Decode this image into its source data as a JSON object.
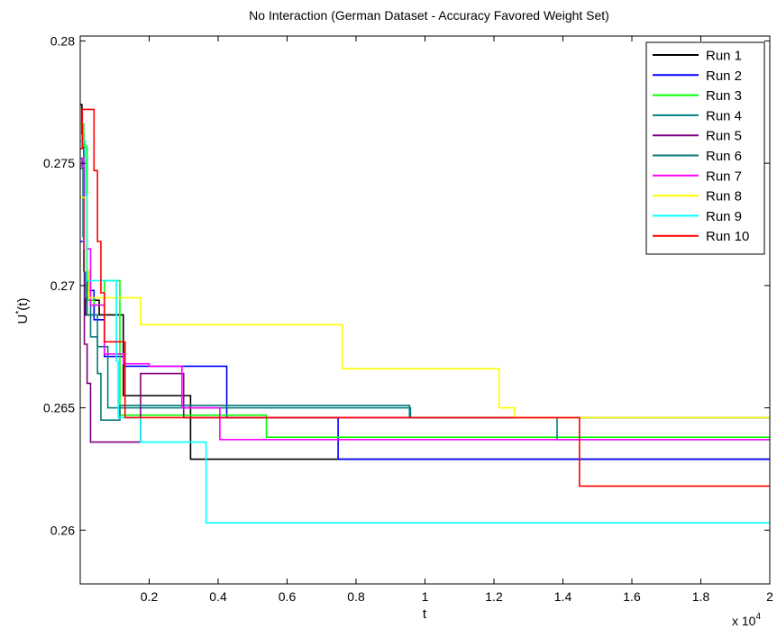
{
  "chart_data": {
    "type": "line",
    "title": "No Interaction (German Dataset - Accuracy Favored Weight Set)",
    "xlabel": "t",
    "ylabel": "U",
    "ylabel_superscript": "*",
    "ylabel_suffix": "(t)",
    "x_exponent_label": "x 10",
    "x_exponent_power": "4",
    "xlim": [
      0,
      20000
    ],
    "ylim": [
      0.2578,
      0.2802
    ],
    "x_tick_values": [
      2000,
      4000,
      6000,
      8000,
      10000,
      12000,
      14000,
      16000,
      18000,
      20000
    ],
    "x_tick_labels": [
      "0.2",
      "0.4",
      "0.6",
      "0.8",
      "1",
      "1.2",
      "1.4",
      "1.6",
      "1.8",
      "2"
    ],
    "y_tick_values": [
      0.26,
      0.265,
      0.27,
      0.275,
      0.28
    ],
    "y_tick_labels": [
      "0.26",
      "0.265",
      "0.27",
      "0.275",
      "0.28"
    ],
    "grid": false,
    "legend_position": "top-right",
    "step": true,
    "series": [
      {
        "name": "Run 1",
        "color": "#000000",
        "points": [
          [
            0,
            0.2774
          ],
          [
            50,
            0.2762
          ],
          [
            100,
            0.2712
          ],
          [
            150,
            0.2688
          ],
          [
            300,
            0.2688
          ],
          [
            400,
            0.2694
          ],
          [
            550,
            0.2688
          ],
          [
            1150,
            0.2688
          ],
          [
            1250,
            0.2655
          ],
          [
            3100,
            0.2655
          ],
          [
            3200,
            0.2629
          ],
          [
            20000,
            0.2629
          ]
        ]
      },
      {
        "name": "Run 2",
        "color": "#0000ff",
        "points": [
          [
            0,
            0.2718
          ],
          [
            100,
            0.2706
          ],
          [
            250,
            0.2698
          ],
          [
            400,
            0.2686
          ],
          [
            700,
            0.2671
          ],
          [
            1300,
            0.2667
          ],
          [
            4200,
            0.2667
          ],
          [
            4250,
            0.2646
          ],
          [
            7450,
            0.2646
          ],
          [
            7480,
            0.2629
          ],
          [
            20000,
            0.2629
          ]
        ]
      },
      {
        "name": "Run 3",
        "color": "#00ff00",
        "points": [
          [
            0,
            0.2766
          ],
          [
            100,
            0.2757
          ],
          [
            200,
            0.2694
          ],
          [
            400,
            0.2692
          ],
          [
            700,
            0.2702
          ],
          [
            1050,
            0.2702
          ],
          [
            1150,
            0.2647
          ],
          [
            5350,
            0.2647
          ],
          [
            5400,
            0.2638
          ],
          [
            20000,
            0.2638
          ]
        ]
      },
      {
        "name": "Run 4",
        "color": "#008080",
        "points": [
          [
            0,
            0.2756
          ],
          [
            100,
            0.2706
          ],
          [
            200,
            0.2688
          ],
          [
            500,
            0.2675
          ],
          [
            800,
            0.265
          ],
          [
            9550,
            0.265
          ],
          [
            9580,
            0.2646
          ],
          [
            13800,
            0.2646
          ],
          [
            13830,
            0.2637
          ],
          [
            20000,
            0.2637
          ]
        ]
      },
      {
        "name": "Run 5",
        "color": "#800080",
        "points": [
          [
            0,
            0.2748
          ],
          [
            120,
            0.2676
          ],
          [
            200,
            0.266
          ],
          [
            300,
            0.2636
          ],
          [
            1700,
            0.2636
          ],
          [
            1750,
            0.2664
          ],
          [
            2950,
            0.2664
          ],
          [
            3000,
            0.2646
          ],
          [
            20000,
            0.2646
          ]
        ]
      },
      {
        "name": "Run 6",
        "color": "#0b7a7a",
        "points": [
          [
            0,
            0.2752
          ],
          [
            80,
            0.272
          ],
          [
            150,
            0.2695
          ],
          [
            300,
            0.2679
          ],
          [
            500,
            0.2664
          ],
          [
            600,
            0.2645
          ],
          [
            1100,
            0.2645
          ],
          [
            1150,
            0.2651
          ],
          [
            9500,
            0.2651
          ],
          [
            9550,
            0.2646
          ],
          [
            20000,
            0.2646
          ]
        ]
      },
      {
        "name": "Run 7",
        "color": "#ff00ff",
        "points": [
          [
            0,
            0.2749
          ],
          [
            50,
            0.2752
          ],
          [
            100,
            0.2715
          ],
          [
            300,
            0.2692
          ],
          [
            650,
            0.2692
          ],
          [
            700,
            0.2672
          ],
          [
            1250,
            0.2668
          ],
          [
            2000,
            0.2667
          ],
          [
            2900,
            0.2667
          ],
          [
            2950,
            0.265
          ],
          [
            4000,
            0.265
          ],
          [
            4050,
            0.2637
          ],
          [
            20000,
            0.2637
          ]
        ]
      },
      {
        "name": "Run 8",
        "color": "#ffff00",
        "points": [
          [
            0,
            0.2736
          ],
          [
            150,
            0.2706
          ],
          [
            250,
            0.2695
          ],
          [
            1700,
            0.2695
          ],
          [
            1750,
            0.2684
          ],
          [
            7550,
            0.2684
          ],
          [
            7600,
            0.2666
          ],
          [
            12100,
            0.2666
          ],
          [
            12150,
            0.265
          ],
          [
            12550,
            0.265
          ],
          [
            12600,
            0.2646
          ],
          [
            20000,
            0.2646
          ]
        ]
      },
      {
        "name": "Run 9",
        "color": "#00ffff",
        "points": [
          [
            0,
            0.2759
          ],
          [
            150,
            0.2737
          ],
          [
            200,
            0.2702
          ],
          [
            1000,
            0.2702
          ],
          [
            1050,
            0.2669
          ],
          [
            1100,
            0.2646
          ],
          [
            1700,
            0.2646
          ],
          [
            1750,
            0.2636
          ],
          [
            3600,
            0.2636
          ],
          [
            3650,
            0.2603
          ],
          [
            20000,
            0.2603
          ]
        ]
      },
      {
        "name": "Run 10",
        "color": "#ff0000",
        "points": [
          [
            0,
            0.2756
          ],
          [
            60,
            0.2772
          ],
          [
            350,
            0.2772
          ],
          [
            400,
            0.2747
          ],
          [
            500,
            0.2718
          ],
          [
            600,
            0.2697
          ],
          [
            700,
            0.2677
          ],
          [
            1200,
            0.2677
          ],
          [
            1300,
            0.2646
          ],
          [
            14450,
            0.2646
          ],
          [
            14480,
            0.2618
          ],
          [
            20000,
            0.2618
          ]
        ]
      }
    ]
  }
}
